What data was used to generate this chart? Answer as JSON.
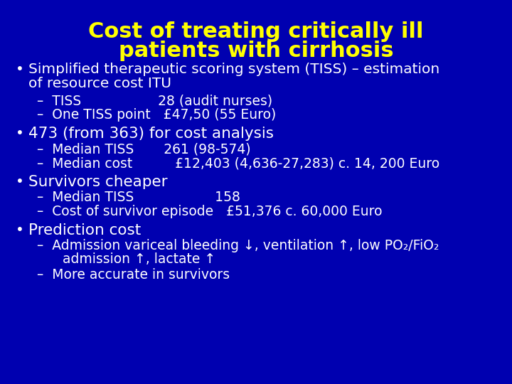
{
  "title_line1": "Cost of treating critically ill",
  "title_line2": "patients with cirrhosis",
  "title_color": "#FFFF00",
  "bg_color": "#0000B0",
  "text_color": "#FFFFFF",
  "title_fontsize": 22,
  "body_fontsize": 14.5,
  "sub_fontsize": 13.5,
  "bullet1_main_l1": "Simplified therapeutic scoring system (TISS) – estimation",
  "bullet1_main_l2": "of resource cost ITU",
  "bullet1_sub1": "–  TISS                  28 (audit nurses)",
  "bullet1_sub2": "–  One TISS point   £47,50 (55 Euro)",
  "bullet2_main": "473 (from 363) for cost analysis",
  "bullet2_sub1": "–  Median TISS       261 (98-574)",
  "bullet2_sub2": "–  Median cost          £12,403 (4,636-27,283) c. 14, 200 Euro",
  "bullet3_main": "Survivors cheaper",
  "bullet3_sub1": "–  Median TISS                   158",
  "bullet3_sub2": "–  Cost of survivor episode   £51,376 c. 60,000 Euro",
  "bullet4_main": "Prediction cost",
  "bullet4_sub1": "–  Admission variceal bleeding ↓, ventilation ↑, low PO₂/FiO₂",
  "bullet4_sub1b": "      admission ↑, lactate ↑",
  "bullet4_sub2": "–  More accurate in survivors"
}
